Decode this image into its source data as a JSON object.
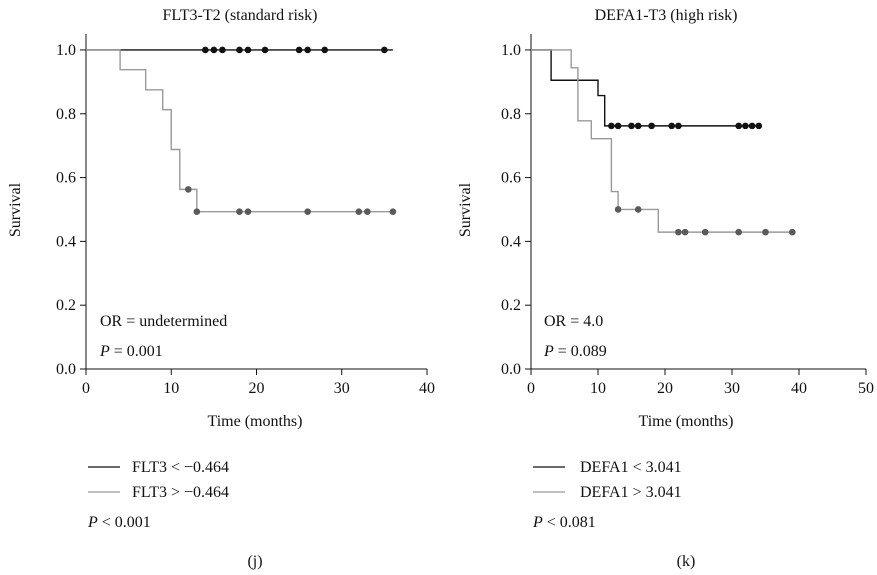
{
  "chart_data": [
    {
      "type": "line",
      "subtype": "kaplan-meier",
      "title": "FLT3-T2 (standard risk)",
      "xlabel": "Time (months)",
      "ylabel": "Survival",
      "xlim": [
        0,
        40
      ],
      "ylim": [
        0,
        1.05
      ],
      "xticks": [
        0,
        10,
        20,
        30,
        40
      ],
      "yticks": [
        0.0,
        0.2,
        0.4,
        0.6,
        0.8,
        1.0
      ],
      "ytick_labels": [
        "0.0",
        "0.2",
        "0.4",
        "0.6",
        "0.8",
        "1.0"
      ],
      "annotation_or": "OR = undetermined",
      "annotation_p_label": "P",
      "annotation_p_value": " = 0.001",
      "legend": [
        {
          "name": "FLT3 < −0.464",
          "color": "#111111"
        },
        {
          "name": "FLT3 > −0.464",
          "color": "#9a9a9a"
        }
      ],
      "legend_p_label": "P",
      "legend_p_value": " < 0.001",
      "panel_label": "(j)",
      "series": [
        {
          "name": "FLT3 < −0.464",
          "color": "#111111",
          "censor_color": "#111111",
          "steps": [
            [
              0,
              1.0
            ],
            [
              36,
              1.0
            ]
          ],
          "censored": [
            [
              14,
              1.0
            ],
            [
              15,
              1.0
            ],
            [
              16,
              1.0
            ],
            [
              18,
              1.0
            ],
            [
              19,
              1.0
            ],
            [
              21,
              1.0
            ],
            [
              25,
              1.0
            ],
            [
              26,
              1.0
            ],
            [
              28,
              1.0
            ],
            [
              35,
              1.0
            ]
          ]
        },
        {
          "name": "FLT3 > −0.464",
          "color": "#9a9a9a",
          "censor_color": "#5a5a5a",
          "steps": [
            [
              0,
              1.0
            ],
            [
              4,
              0.938
            ],
            [
              7,
              0.875
            ],
            [
              9,
              0.813
            ],
            [
              10,
              0.688
            ],
            [
              11,
              0.563
            ],
            [
              13,
              0.493
            ],
            [
              36,
              0.493
            ]
          ],
          "censored": [
            [
              12,
              0.563
            ],
            [
              13,
              0.493
            ],
            [
              18,
              0.493
            ],
            [
              19,
              0.493
            ],
            [
              26,
              0.493
            ],
            [
              32,
              0.493
            ],
            [
              33,
              0.493
            ],
            [
              36,
              0.493
            ]
          ]
        }
      ]
    },
    {
      "type": "line",
      "subtype": "kaplan-meier",
      "title": "DEFA1-T3 (high risk)",
      "xlabel": "Time (months)",
      "ylabel": "Survival",
      "xlim": [
        0,
        50
      ],
      "ylim": [
        0,
        1.05
      ],
      "xticks": [
        0,
        10,
        20,
        30,
        40,
        50
      ],
      "yticks": [
        0.0,
        0.2,
        0.4,
        0.6,
        0.8,
        1.0
      ],
      "ytick_labels": [
        "0.0",
        "0.2",
        "0.4",
        "0.6",
        "0.8",
        "1.0"
      ],
      "annotation_or": "OR = 4.0",
      "annotation_p_label": "P",
      "annotation_p_value": " = 0.089",
      "legend": [
        {
          "name": "DEFA1 < 3.041",
          "color": "#111111"
        },
        {
          "name": "DEFA1 > 3.041",
          "color": "#9a9a9a"
        }
      ],
      "legend_p_label": "P",
      "legend_p_value": " < 0.081",
      "panel_label": "(k)",
      "series": [
        {
          "name": "DEFA1 < 3.041",
          "color": "#111111",
          "censor_color": "#111111",
          "steps": [
            [
              0,
              1.0
            ],
            [
              3,
              0.905
            ],
            [
              10,
              0.857
            ],
            [
              11,
              0.762
            ],
            [
              34,
              0.762
            ]
          ],
          "censored": [
            [
              12,
              0.762
            ],
            [
              13,
              0.762
            ],
            [
              15,
              0.762
            ],
            [
              16,
              0.762
            ],
            [
              18,
              0.762
            ],
            [
              21,
              0.762
            ],
            [
              22,
              0.762
            ],
            [
              31,
              0.762
            ],
            [
              32,
              0.762
            ],
            [
              33,
              0.762
            ],
            [
              34,
              0.762
            ]
          ]
        },
        {
          "name": "DEFA1 > 3.041",
          "color": "#9a9a9a",
          "censor_color": "#5a5a5a",
          "steps": [
            [
              0,
              1.0
            ],
            [
              6,
              0.944
            ],
            [
              7,
              0.778
            ],
            [
              9,
              0.722
            ],
            [
              12,
              0.556
            ],
            [
              13,
              0.5
            ],
            [
              19,
              0.429
            ],
            [
              39,
              0.429
            ]
          ],
          "censored": [
            [
              13,
              0.5
            ],
            [
              16,
              0.5
            ],
            [
              22,
              0.429
            ],
            [
              23,
              0.429
            ],
            [
              26,
              0.429
            ],
            [
              31,
              0.429
            ],
            [
              35,
              0.429
            ],
            [
              39,
              0.429
            ]
          ]
        }
      ]
    }
  ]
}
